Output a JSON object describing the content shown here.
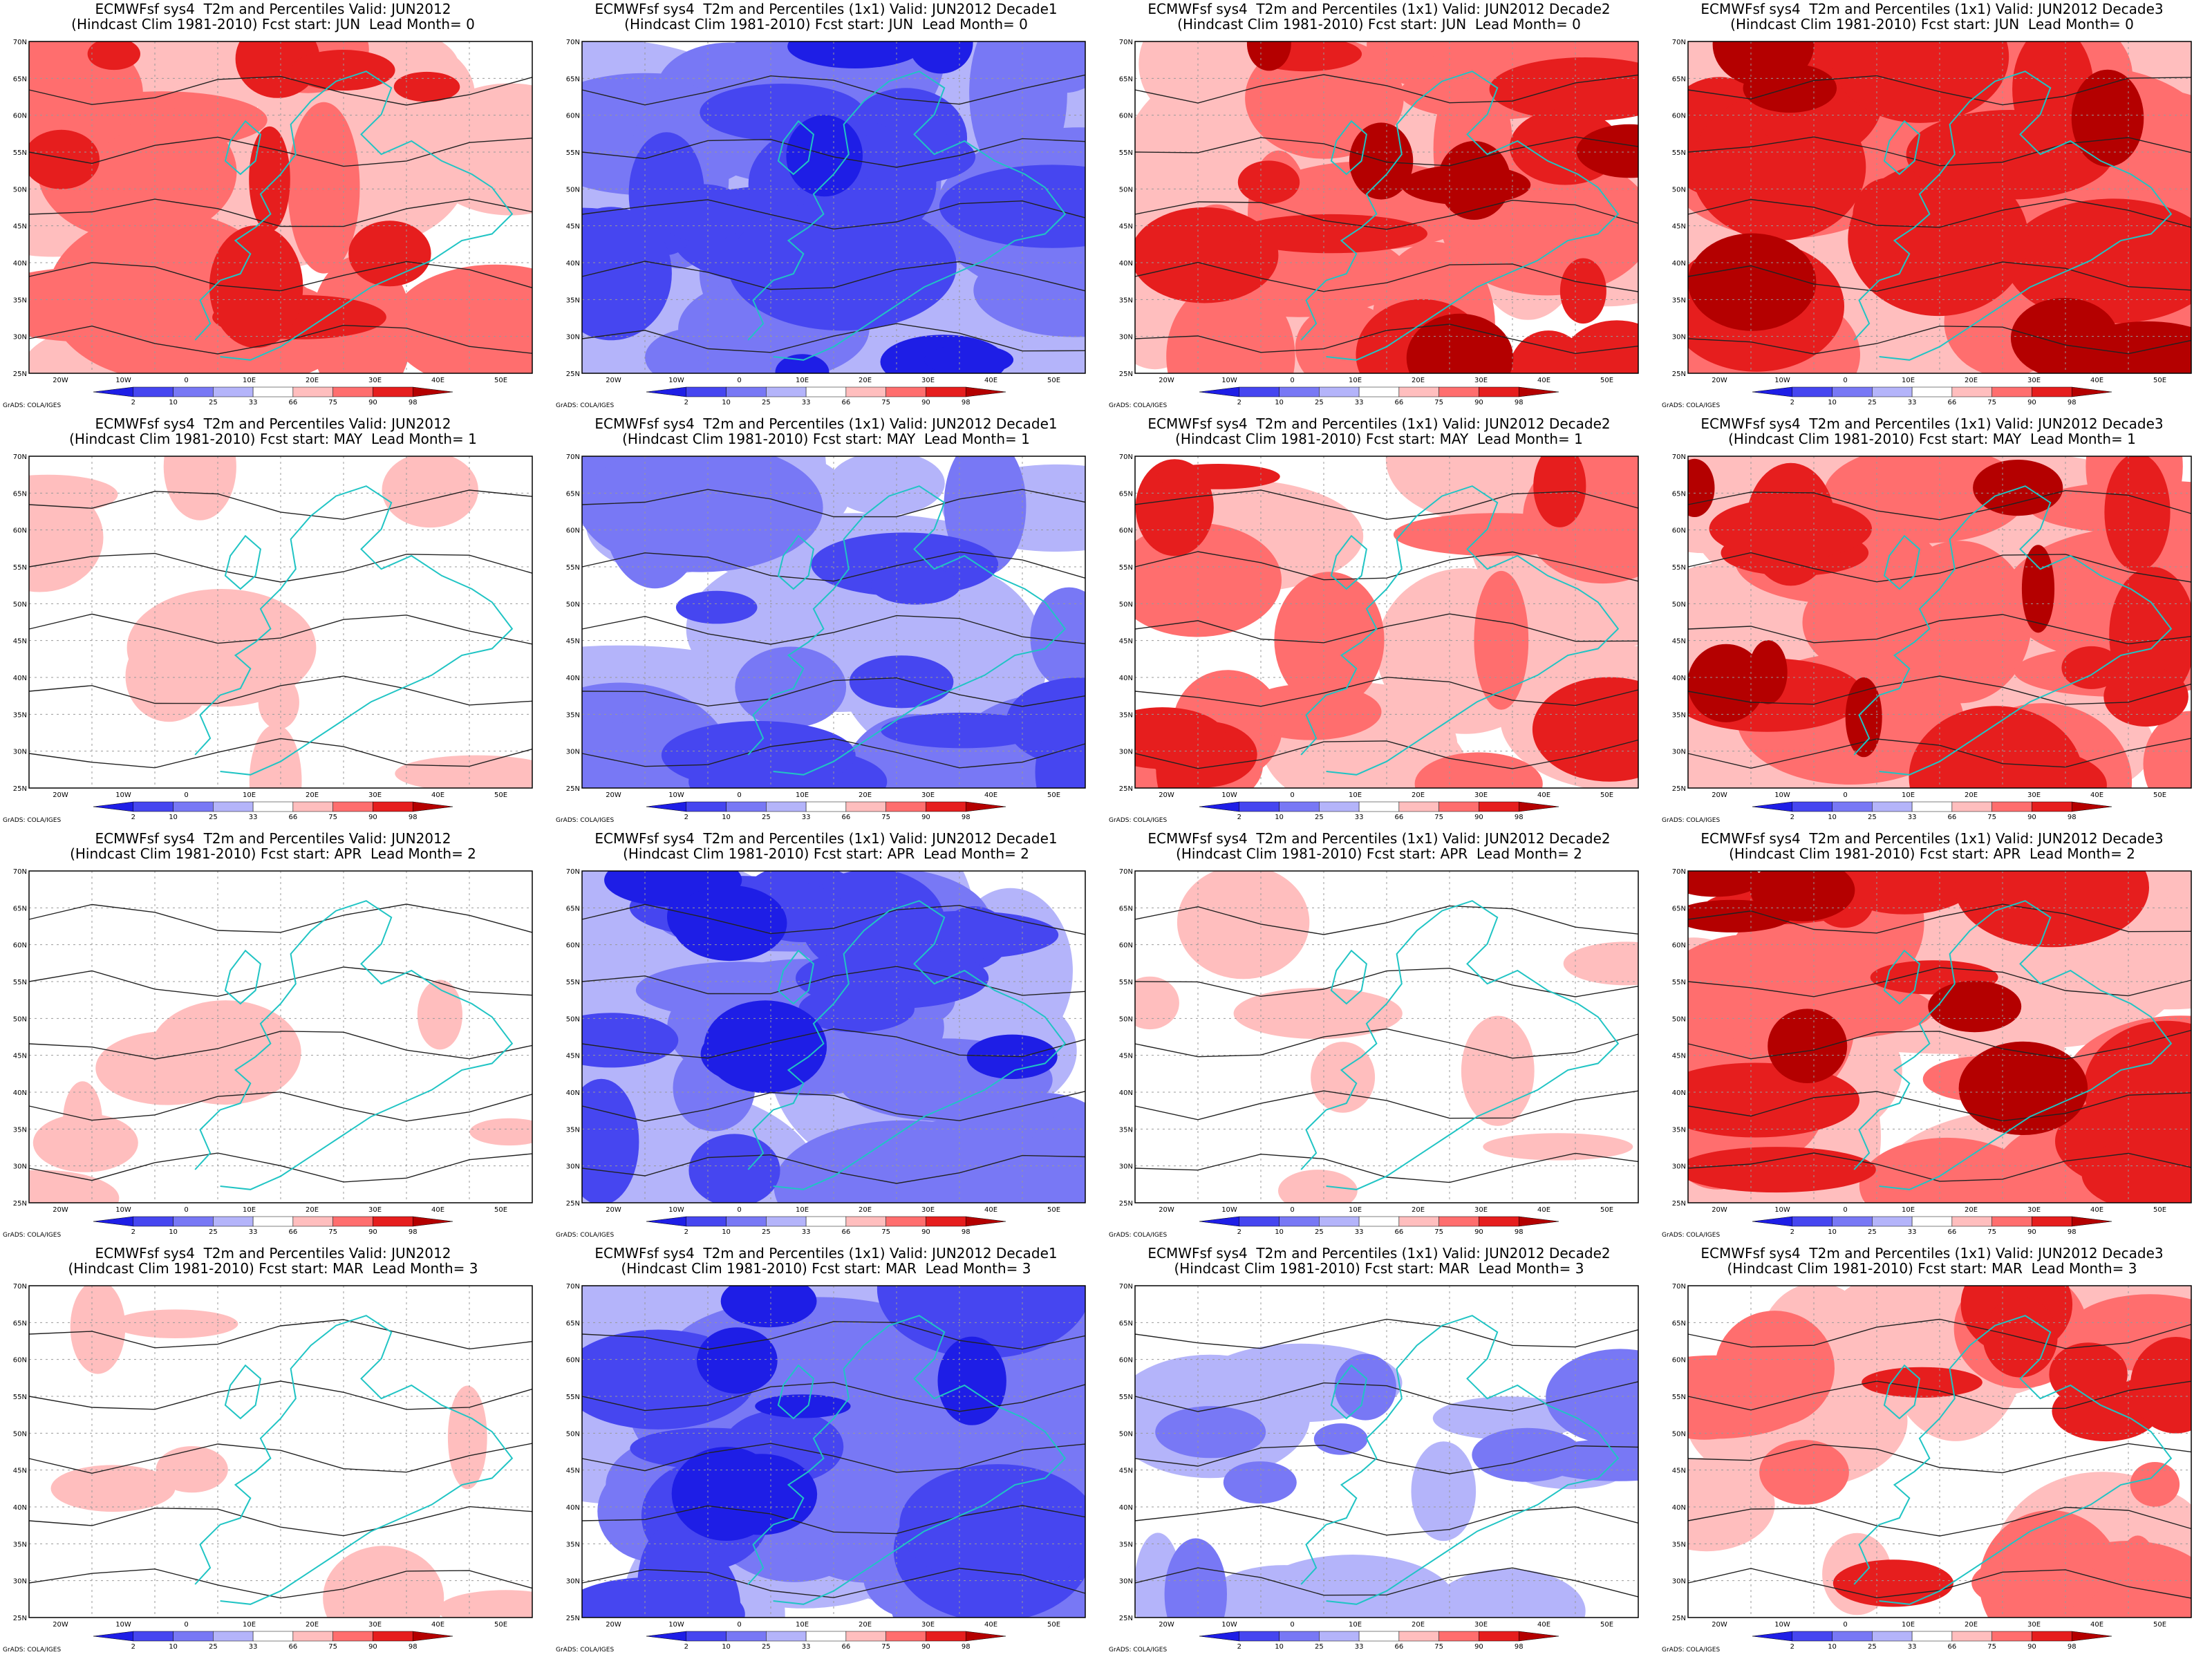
{
  "legend": {
    "labels": [
      "2",
      "10",
      "25",
      "33",
      "66",
      "75",
      "90",
      "98"
    ],
    "colors": [
      "#1e1ee6",
      "#4646f0",
      "#7878f5",
      "#b4b4fa",
      "#ffffff",
      "#ffbebe",
      "#ff6e6e",
      "#e61e1e",
      "#b40000"
    ]
  },
  "axes": {
    "lat_ticks": [
      "70N",
      "65N",
      "60N",
      "55N",
      "50N",
      "45N",
      "40N",
      "35N",
      "30N",
      "25N"
    ],
    "lon_ticks": [
      "20W",
      "10W",
      "0",
      "10E",
      "20E",
      "30E",
      "40E",
      "50E"
    ]
  },
  "credit": "GrADS: COLA/IGES",
  "panels": [
    {
      "id": "r1c1",
      "line1": "ECMWFsf sys4  T2m and Percentiles Valid: JUN2012",
      "line2": "(Hindcast Clim 1981-2010) Fcst start: JUN  Lead Month= 0",
      "anomaly": "warm",
      "intensity": 0.7
    },
    {
      "id": "r1c2",
      "line1": "ECMWFsf sys4  T2m and Percentiles (1x1) Valid: JUN2012 Decade1",
      "line2": "(Hindcast Clim 1981-2010) Fcst start: JUN  Lead Month= 0",
      "anomaly": "cold",
      "intensity": 0.9
    },
    {
      "id": "r1c3",
      "line1": "ECMWFsf sys4  T2m and Percentiles (1x1) Valid: JUN2012 Decade2",
      "line2": "(Hindcast Clim 1981-2010) Fcst start: JUN  Lead Month= 0",
      "anomaly": "warm",
      "intensity": 0.75
    },
    {
      "id": "r1c4",
      "line1": "ECMWFsf sys4  T2m and Percentiles (1x1) Valid: JUN2012 Decade3",
      "line2": "(Hindcast Clim 1981-2010) Fcst start: JUN  Lead Month= 0",
      "anomaly": "warm",
      "intensity": 0.95
    },
    {
      "id": "r2c1",
      "line1": "ECMWFsf sys4  T2m and Percentiles Valid: JUN2012",
      "line2": "(Hindcast Clim 1981-2010) Fcst start: MAY  Lead Month= 1",
      "anomaly": "warm",
      "intensity": 0.2
    },
    {
      "id": "r2c2",
      "line1": "ECMWFsf sys4  T2m and Percentiles (1x1) Valid: JUN2012 Decade1",
      "line2": "(Hindcast Clim 1981-2010) Fcst start: MAY  Lead Month= 1",
      "anomaly": "cold",
      "intensity": 0.7
    },
    {
      "id": "r2c3",
      "line1": "ECMWFsf sys4  T2m and Percentiles (1x1) Valid: JUN2012 Decade2",
      "line2": "(Hindcast Clim 1981-2010) Fcst start: MAY  Lead Month= 1",
      "anomaly": "warm",
      "intensity": 0.5
    },
    {
      "id": "r2c4",
      "line1": "ECMWFsf sys4  T2m and Percentiles (1x1) Valid: JUN2012 Decade3",
      "line2": "(Hindcast Clim 1981-2010) Fcst start: MAY  Lead Month= 1",
      "anomaly": "warm",
      "intensity": 0.85
    },
    {
      "id": "r3c1",
      "line1": "ECMWFsf sys4  T2m and Percentiles Valid: JUN2012",
      "line2": "(Hindcast Clim 1981-2010) Fcst start: APR  Lead Month= 2",
      "anomaly": "warm",
      "intensity": 0.1
    },
    {
      "id": "r3c2",
      "line1": "ECMWFsf sys4  T2m and Percentiles (1x1) Valid: JUN2012 Decade1",
      "line2": "(Hindcast Clim 1981-2010) Fcst start: APR  Lead Month= 2",
      "anomaly": "cold",
      "intensity": 0.8
    },
    {
      "id": "r3c3",
      "line1": "ECMWFsf sys4  T2m and Percentiles (1x1) Valid: JUN2012 Decade2",
      "line2": "(Hindcast Clim 1981-2010) Fcst start: APR  Lead Month= 2",
      "anomaly": "warm",
      "intensity": 0.15
    },
    {
      "id": "r3c4",
      "line1": "ECMWFsf sys4  T2m and Percentiles (1x1) Valid: JUN2012 Decade3",
      "line2": "(Hindcast Clim 1981-2010) Fcst start: APR  Lead Month= 2",
      "anomaly": "warm",
      "intensity": 0.8
    },
    {
      "id": "r4c1",
      "line1": "ECMWFsf sys4  T2m and Percentiles Valid: JUN2012",
      "line2": "(Hindcast Clim 1981-2010) Fcst start: MAR  Lead Month= 3",
      "anomaly": "warm",
      "intensity": 0.1
    },
    {
      "id": "r4c2",
      "line1": "ECMWFsf sys4  T2m and Percentiles (1x1) Valid: JUN2012 Decade1",
      "line2": "(Hindcast Clim 1981-2010) Fcst start: MAR  Lead Month= 3",
      "anomaly": "cold",
      "intensity": 0.9
    },
    {
      "id": "r4c3",
      "line1": "ECMWFsf sys4  T2m and Percentiles (1x1) Valid: JUN2012 Decade2",
      "line2": "(Hindcast Clim 1981-2010) Fcst start: MAR  Lead Month= 3",
      "anomaly": "cold",
      "intensity": 0.3
    },
    {
      "id": "r4c4",
      "line1": "ECMWFsf sys4  T2m and Percentiles (1x1) Valid: JUN2012 Decade3",
      "line2": "(Hindcast Clim 1981-2010) Fcst start: MAR  Lead Month= 3",
      "anomaly": "warm",
      "intensity": 0.55
    }
  ]
}
